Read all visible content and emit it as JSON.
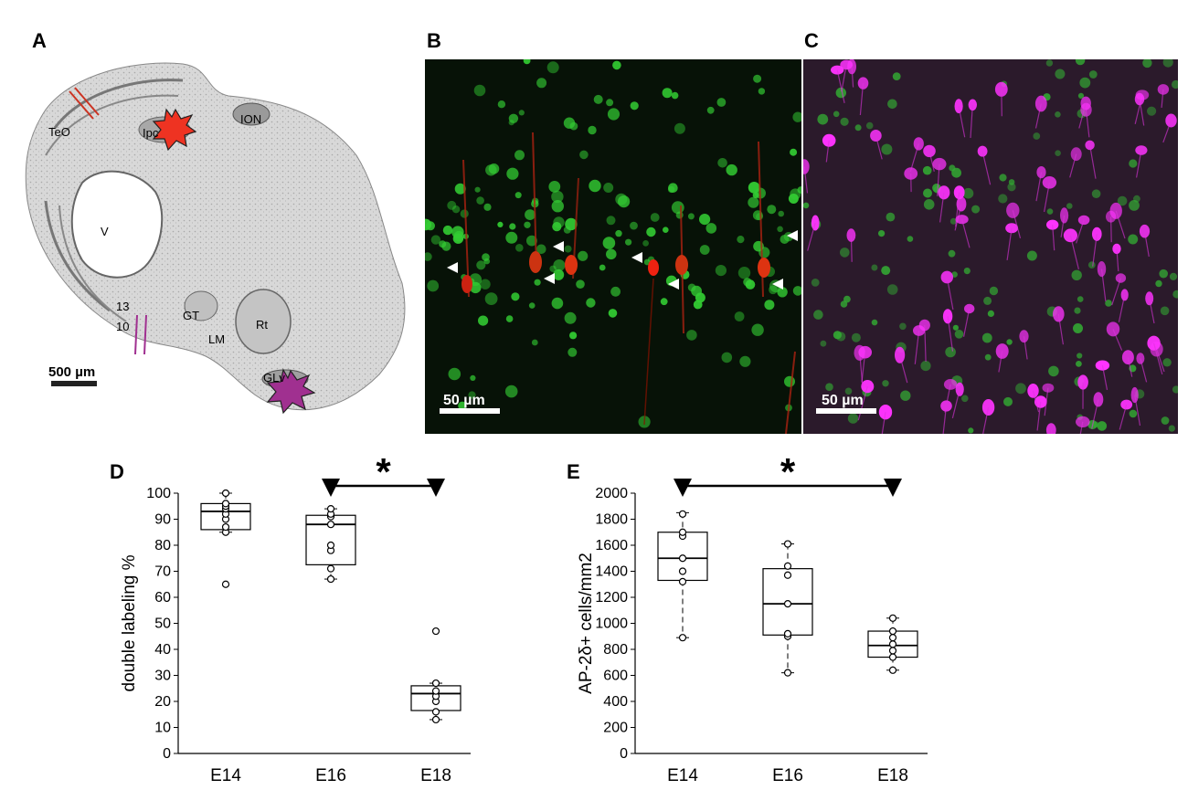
{
  "panels": {
    "A": {
      "letter": "A",
      "labels": [
        "TeO",
        "Ipc",
        "ION",
        "V",
        "13",
        "10",
        "GT",
        "LM",
        "Rt",
        "GLv"
      ],
      "scalebar": "500 µm",
      "colors": {
        "tissue": "#d6d6d6",
        "ipc_star": "#ee3322",
        "glv_star": "#a03090",
        "marker_red": "#cc3322",
        "marker_magenta": "#a03090"
      }
    },
    "B": {
      "letter": "B",
      "scalebar": "50 µm",
      "colors": {
        "background": "#071207",
        "green": "#33cc33",
        "red": "#cc2211"
      }
    },
    "C": {
      "letter": "C",
      "scalebar": "50 µm",
      "colors": {
        "background": "#2a1a2a",
        "magenta": "#ff33ff",
        "green": "#33aa33"
      }
    }
  },
  "chart_data": [
    {
      "panel": "D",
      "type": "box",
      "categories": [
        "E14",
        "E16",
        "E18"
      ],
      "ylabel": "double labeling %",
      "ylim": [
        0,
        100
      ],
      "yticks": [
        0,
        10,
        20,
        30,
        40,
        50,
        60,
        70,
        80,
        90,
        100
      ],
      "boxes": [
        {
          "category": "E14",
          "whisker_low": 85,
          "q1": 86,
          "median": 93,
          "q3": 96,
          "whisker_high": 100,
          "points": [
            65,
            85,
            87,
            90,
            92,
            94,
            95,
            96,
            100
          ]
        },
        {
          "category": "E16",
          "whisker_low": 67,
          "q1": 72.5,
          "median": 88,
          "q3": 91.5,
          "whisker_high": 94,
          "points": [
            67,
            71,
            78,
            80,
            88,
            91,
            92,
            94
          ]
        },
        {
          "category": "E18",
          "whisker_low": 13,
          "q1": 16.5,
          "median": 23,
          "q3": 26,
          "whisker_high": 27,
          "points": [
            13,
            16,
            20,
            22,
            24,
            27,
            47
          ]
        }
      ],
      "significance": {
        "from": "E16",
        "to": "E18",
        "marker": "*"
      },
      "grid": false
    },
    {
      "panel": "E",
      "type": "box",
      "categories": [
        "E14",
        "E16",
        "E18"
      ],
      "ylabel": "AP-2δ+ cells/mm2",
      "ylim": [
        0,
        2000
      ],
      "yticks": [
        0,
        200,
        400,
        600,
        800,
        1000,
        1200,
        1400,
        1600,
        1800,
        2000
      ],
      "boxes": [
        {
          "category": "E14",
          "whisker_low": 890,
          "q1": 1330,
          "median": 1500,
          "q3": 1700,
          "whisker_high": 1850,
          "points": [
            890,
            1320,
            1400,
            1500,
            1670,
            1700,
            1840
          ]
        },
        {
          "category": "E16",
          "whisker_low": 620,
          "q1": 910,
          "median": 1150,
          "q3": 1420,
          "whisker_high": 1610,
          "points": [
            620,
            900,
            920,
            1150,
            1370,
            1440,
            1610
          ]
        },
        {
          "category": "E18",
          "whisker_low": 640,
          "q1": 740,
          "median": 830,
          "q3": 940,
          "whisker_high": 1040,
          "points": [
            640,
            740,
            790,
            840,
            890,
            940,
            1040
          ]
        }
      ],
      "significance": {
        "from": "E14",
        "to": "E18",
        "marker": "*"
      },
      "grid": false
    }
  ],
  "chart_letters": {
    "D": "D",
    "E": "E"
  }
}
